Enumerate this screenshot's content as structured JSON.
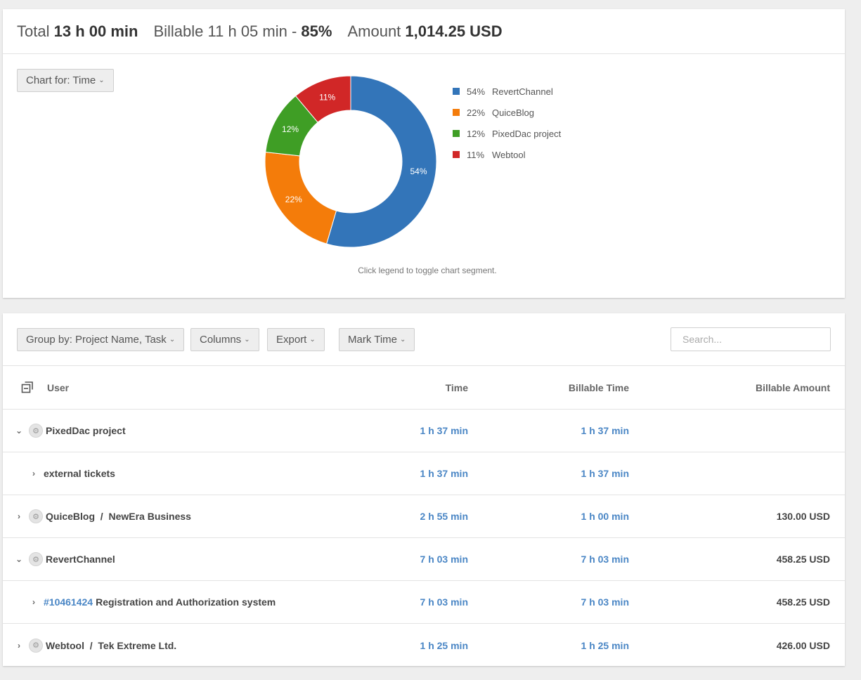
{
  "summary": {
    "total_label": "Total",
    "total_value": "13 h 00 min",
    "billable_label": "Billable",
    "billable_value": "11 h 05 min -",
    "billable_pct": "85%",
    "amount_label": "Amount",
    "amount_value": "1,014.25 USD"
  },
  "chart_button": "Chart for: Time",
  "chart_hint": "Click legend to toggle chart segment.",
  "chart_data": {
    "type": "pie",
    "donut": true,
    "categories": [
      "RevertChannel",
      "QuiceBlog",
      "PixedDac project",
      "Webtool"
    ],
    "values": [
      54,
      22,
      12,
      11
    ],
    "labels": [
      "54%",
      "22%",
      "12%",
      "11%"
    ],
    "colors": [
      "#3375b9",
      "#f47c0a",
      "#3f9e25",
      "#d12727"
    ],
    "legend_position": "right"
  },
  "toolbar": {
    "group_by": "Group by: Project Name, Task",
    "columns": "Columns",
    "export": "Export",
    "mark_time": "Mark Time",
    "search_placeholder": "Search..."
  },
  "table": {
    "headers": {
      "user": "User",
      "time": "Time",
      "billable_time": "Billable Time",
      "billable_amount": "Billable Amount"
    },
    "rows": [
      {
        "toggle": "⌄",
        "name": "PixedDac project",
        "time": "1 h 37 min",
        "billable": "1 h 37 min",
        "amount": ""
      },
      {
        "toggle": "›",
        "name": "external tickets",
        "time": "1 h 37 min",
        "billable": "1 h 37 min",
        "amount": ""
      },
      {
        "toggle": "›",
        "name": "QuiceBlog  /  NewEra Business",
        "time": "2 h 55 min",
        "billable": "1 h 00 min",
        "amount": "130.00 USD"
      },
      {
        "toggle": "⌄",
        "name": "RevertChannel",
        "time": "7 h 03 min",
        "billable": "7 h 03 min",
        "amount": "458.25 USD"
      },
      {
        "toggle": "›",
        "ticket": "#10461424",
        "name": "Registration and Authorization system",
        "time": "7 h 03 min",
        "billable": "7 h 03 min",
        "amount": "458.25 USD"
      },
      {
        "toggle": "›",
        "name": "Webtool  /  Tek Extreme Ltd.",
        "time": "1 h 25 min",
        "billable": "1 h 25 min",
        "amount": "426.00 USD"
      }
    ]
  }
}
